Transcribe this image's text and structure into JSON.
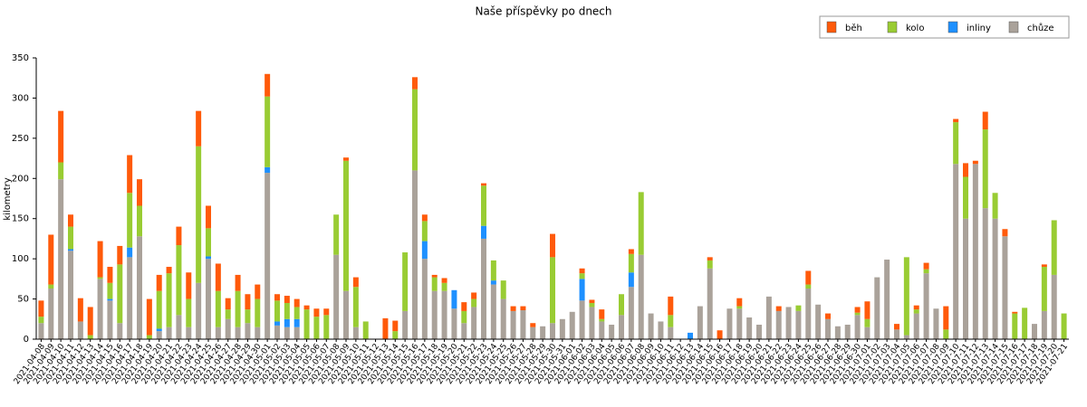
{
  "chart_data": {
    "type": "stacked_bar",
    "title": "Naše příspěvky po dnech",
    "y_label": "kilometry",
    "categories": [
      "2021-04-08",
      "2021-04-09",
      "2021-04-10",
      "2021-04-11",
      "2021-04-12",
      "2021-04-13",
      "2021-04-14",
      "2021-04-15",
      "2021-04-16",
      "2021-04-17",
      "2021-04-18",
      "2021-04-19",
      "2021-04-20",
      "2021-04-21",
      "2021-04-22",
      "2021-04-23",
      "2021-04-24",
      "2021-04-25",
      "2021-04-26",
      "2021-04-27",
      "2021-04-28",
      "2021-04-29",
      "2021-04-30",
      "2021-05-01",
      "2021-05-02",
      "2021-05-03",
      "2021-05-04",
      "2021-05-05",
      "2021-05-06",
      "2021-05-07",
      "2021-05-08",
      "2021-05-09",
      "2021-05-10",
      "2021-05-11",
      "2021-05-12",
      "2021-05-13",
      "2021-05-14",
      "2021-05-15",
      "2021-05-16",
      "2021-05-17",
      "2021-05-18",
      "2021-05-19",
      "2021-05-20",
      "2021-05-21",
      "2021-05-22",
      "2021-05-23",
      "2021-05-24",
      "2021-05-25",
      "2021-05-26",
      "2021-05-27",
      "2021-05-28",
      "2021-05-29",
      "2021-05-30",
      "2021-05-31",
      "2021-06-01",
      "2021-06-02",
      "2021-06-03",
      "2021-06-04",
      "2021-06-05",
      "2021-06-06",
      "2021-06-07",
      "2021-06-08",
      "2021-06-09",
      "2021-06-10",
      "2021-06-11",
      "2021-06-12",
      "2021-06-13",
      "2021-06-14",
      "2021-06-15",
      "2021-06-16",
      "2021-06-17",
      "2021-06-18",
      "2021-06-19",
      "2021-06-20",
      "2021-06-21",
      "2021-06-22",
      "2021-06-23",
      "2021-06-24",
      "2021-06-25",
      "2021-06-26",
      "2021-06-27",
      "2021-06-28",
      "2021-06-29",
      "2021-06-30",
      "2021-07-01",
      "2021-07-02",
      "2021-07-03",
      "2021-07-04",
      "2021-07-05",
      "2021-07-06",
      "2021-07-07",
      "2021-07-08",
      "2021-07-09",
      "2021-07-10",
      "2021-07-11",
      "2021-07-12",
      "2021-07-13",
      "2021-07-14",
      "2021-07-15",
      "2021-07-16",
      "2021-07-17",
      "2021-07-18",
      "2021-07-19",
      "2021-07-20",
      "2021-07-21"
    ],
    "series": [
      {
        "name": "chůze",
        "color": "#aaa29a",
        "values": [
          20,
          63,
          199,
          110,
          22,
          0,
          75,
          48,
          20,
          102,
          128,
          0,
          10,
          15,
          30,
          15,
          70,
          100,
          15,
          25,
          15,
          20,
          15,
          207,
          17,
          15,
          15,
          0,
          0,
          0,
          105,
          60,
          15,
          0,
          0,
          0,
          0,
          35,
          210,
          100,
          60,
          60,
          38,
          20,
          40,
          125,
          68,
          50,
          35,
          36,
          15,
          16,
          20,
          25,
          34,
          48,
          40,
          22,
          18,
          30,
          65,
          105,
          32,
          22,
          15,
          0,
          0,
          41,
          88,
          0,
          38,
          38,
          27,
          18,
          53,
          35,
          40,
          35,
          63,
          43,
          25,
          16,
          18,
          30,
          15,
          77,
          99,
          12,
          5,
          32,
          82,
          38,
          0,
          218,
          150,
          218,
          163,
          150,
          128,
          0,
          0,
          19,
          35,
          80,
          0
        ]
      },
      {
        "name": "inliny",
        "color": "#1e90ff",
        "values": [
          0,
          0,
          0,
          2,
          0,
          0,
          0,
          2,
          0,
          12,
          0,
          0,
          3,
          0,
          0,
          0,
          0,
          3,
          0,
          0,
          0,
          0,
          0,
          7,
          5,
          10,
          10,
          0,
          0,
          0,
          0,
          0,
          0,
          0,
          0,
          0,
          0,
          0,
          0,
          22,
          0,
          0,
          23,
          0,
          0,
          16,
          5,
          0,
          0,
          0,
          0,
          0,
          0,
          0,
          0,
          27,
          0,
          0,
          0,
          0,
          18,
          0,
          0,
          0,
          0,
          0,
          8,
          0,
          0,
          0,
          0,
          0,
          0,
          0,
          0,
          0,
          0,
          0,
          0,
          0,
          0,
          0,
          0,
          0,
          0,
          0,
          0,
          0,
          0,
          0,
          0,
          0,
          0,
          0,
          0,
          0,
          0,
          0,
          0,
          0,
          0,
          0,
          0,
          0,
          0
        ]
      },
      {
        "name": "kolo",
        "color": "#99cc33",
        "values": [
          8,
          5,
          21,
          28,
          0,
          5,
          2,
          20,
          73,
          68,
          38,
          5,
          47,
          67,
          87,
          35,
          170,
          35,
          45,
          12,
          45,
          17,
          35,
          88,
          26,
          20,
          15,
          37,
          28,
          30,
          50,
          162,
          50,
          22,
          0,
          0,
          10,
          73,
          101,
          25,
          17,
          10,
          0,
          15,
          10,
          50,
          25,
          23,
          0,
          0,
          0,
          0,
          82,
          0,
          0,
          7,
          5,
          3,
          0,
          26,
          23,
          78,
          0,
          0,
          15,
          0,
          0,
          0,
          10,
          0,
          0,
          3,
          0,
          0,
          0,
          0,
          0,
          7,
          5,
          0,
          0,
          0,
          0,
          3,
          10,
          0,
          0,
          0,
          97,
          5,
          5,
          0,
          12,
          52,
          52,
          0,
          98,
          32,
          0,
          32,
          39,
          0,
          55,
          68,
          32
        ]
      },
      {
        "name": "běh",
        "color": "#ff5a0a",
        "values": [
          20,
          62,
          64,
          15,
          29,
          35,
          45,
          20,
          23,
          47,
          33,
          45,
          20,
          8,
          23,
          33,
          44,
          28,
          34,
          14,
          20,
          19,
          18,
          28,
          8,
          9,
          10,
          5,
          10,
          8,
          0,
          4,
          12,
          0,
          0,
          26,
          13,
          0,
          15,
          8,
          3,
          6,
          0,
          11,
          8,
          3,
          0,
          0,
          6,
          5,
          5,
          0,
          29,
          0,
          0,
          6,
          4,
          12,
          0,
          0,
          6,
          0,
          0,
          0,
          23,
          0,
          0,
          0,
          4,
          11,
          0,
          10,
          0,
          0,
          0,
          6,
          0,
          0,
          17,
          0,
          7,
          0,
          0,
          7,
          22,
          0,
          0,
          7,
          0,
          5,
          8,
          0,
          29,
          4,
          17,
          4,
          22,
          0,
          9,
          2,
          0,
          0,
          3,
          0,
          0
        ]
      }
    ],
    "ylim": [
      0,
      350
    ],
    "yticks": [
      0,
      50,
      100,
      150,
      200,
      250,
      300,
      350
    ],
    "grid": false,
    "legend": "top-right"
  }
}
